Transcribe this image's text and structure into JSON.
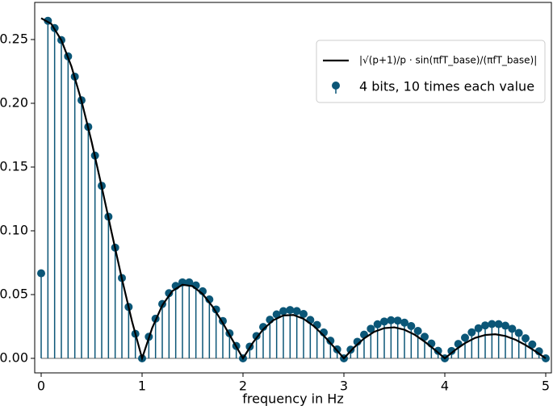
{
  "chart_data": {
    "type": "stem",
    "xlabel": "frequency in Hz",
    "xlim": [
      -0.064,
      5.056
    ],
    "xticks": [
      0,
      1,
      2,
      3,
      4,
      5
    ],
    "ylim": [
      -0.0114,
      0.2791
    ],
    "yticks": [
      {
        "value": 0,
        "label": "0.00"
      },
      {
        "value": 0.05,
        "label": "0.05"
      },
      {
        "value": 0.1,
        "label": "0.10"
      },
      {
        "value": 0.15,
        "label": "0.15"
      },
      {
        "value": 0.2,
        "label": "0.20"
      },
      {
        "value": 0.25,
        "label": "0.25"
      }
    ],
    "legend": "upper right",
    "series": [
      {
        "name": "|√(p+1)/p · sin(πfT_base)/(πfT_base)|",
        "type": "line",
        "color": "#000000",
        "x": [
          0,
          0.1,
          0.2,
          0.3,
          0.4,
          0.5,
          0.6,
          0.7,
          0.8,
          0.9,
          1,
          1.1,
          1.2,
          1.3,
          1.4,
          1.5,
          1.6,
          1.7,
          1.8,
          1.9,
          2,
          2.1,
          2.2,
          2.3,
          2.4,
          2.5,
          2.6,
          2.7,
          2.8,
          2.9,
          3,
          3.1,
          3.2,
          3.3,
          3.4,
          3.5,
          3.6,
          3.7,
          3.8,
          3.9,
          4,
          4.1,
          4.2,
          4.3,
          4.4,
          4.5,
          4.6,
          4.7,
          4.8,
          4.9,
          5
        ],
        "values": [
          0.2667,
          0.2623,
          0.2495,
          0.2289,
          0.2018,
          0.1698,
          0.1345,
          0.0981,
          0.0624,
          0.0291,
          0,
          0.0238,
          0.0416,
          0.0528,
          0.0577,
          0.0566,
          0.0505,
          0.0404,
          0.0277,
          0.0138,
          0,
          0.0125,
          0.0227,
          0.0299,
          0.0336,
          0.034,
          0.031,
          0.0254,
          0.0178,
          0.009,
          0,
          0.0085,
          0.0156,
          0.0208,
          0.0237,
          0.0243,
          0.0224,
          0.0186,
          0.0131,
          0.0067,
          0,
          0.0064,
          0.0119,
          0.016,
          0.0183,
          0.0189,
          0.0175,
          0.0146,
          0.0104,
          0.0054,
          0
        ]
      },
      {
        "name": "4 bits, 10 times each value",
        "type": "stem",
        "color": "#0b5677",
        "x": [
          0,
          0.0667,
          0.1333,
          0.2,
          0.2667,
          0.3333,
          0.4,
          0.4667,
          0.5333,
          0.6,
          0.6667,
          0.7333,
          0.8,
          0.8667,
          0.9333,
          1,
          1.0667,
          1.1333,
          1.2,
          1.2667,
          1.3333,
          1.4,
          1.4667,
          1.5333,
          1.6,
          1.6667,
          1.7333,
          1.8,
          1.8667,
          1.9333,
          2,
          2.0667,
          2.1333,
          2.2,
          2.2667,
          2.3333,
          2.4,
          2.4667,
          2.5333,
          2.6,
          2.6667,
          2.7333,
          2.8,
          2.8667,
          2.9333,
          3,
          3.0667,
          3.1333,
          3.2,
          3.2667,
          3.3333,
          3.4,
          3.4667,
          3.5333,
          3.6,
          3.6667,
          3.7333,
          3.8,
          3.8667,
          3.9333,
          4,
          4.0667,
          4.1333,
          4.2,
          4.2667,
          4.3333,
          4.4,
          4.4667,
          4.5333,
          4.6,
          4.6667,
          4.7333,
          4.8,
          4.8667,
          4.9333,
          5
        ],
        "values": [
          0.0667,
          0.2647,
          0.259,
          0.2496,
          0.2368,
          0.2209,
          0.2024,
          0.1815,
          0.159,
          0.1353,
          0.1111,
          0.0868,
          0.063,
          0.0403,
          0.0192,
          0,
          0.0169,
          0.0311,
          0.0426,
          0.0511,
          0.0568,
          0.0596,
          0.0596,
          0.0572,
          0.0526,
          0.0462,
          0.0383,
          0.0293,
          0.0196,
          0.0097,
          0,
          0.0092,
          0.0175,
          0.0246,
          0.0303,
          0.0345,
          0.037,
          0.0379,
          0.0371,
          0.0348,
          0.0301,
          0.0262,
          0.0203,
          0.0138,
          0.007,
          0,
          0.0068,
          0.013,
          0.0186,
          0.0232,
          0.0267,
          0.0289,
          0.0299,
          0.0296,
          0.028,
          0.0253,
          0.0215,
          0.0169,
          0.0116,
          0.0059,
          0,
          0.0058,
          0.0113,
          0.0162,
          0.0204,
          0.0236,
          0.0258,
          0.0269,
          0.0268,
          0.0256,
          0.0232,
          0.0199,
          0.0157,
          0.0109,
          0.0055,
          0
        ]
      }
    ]
  }
}
